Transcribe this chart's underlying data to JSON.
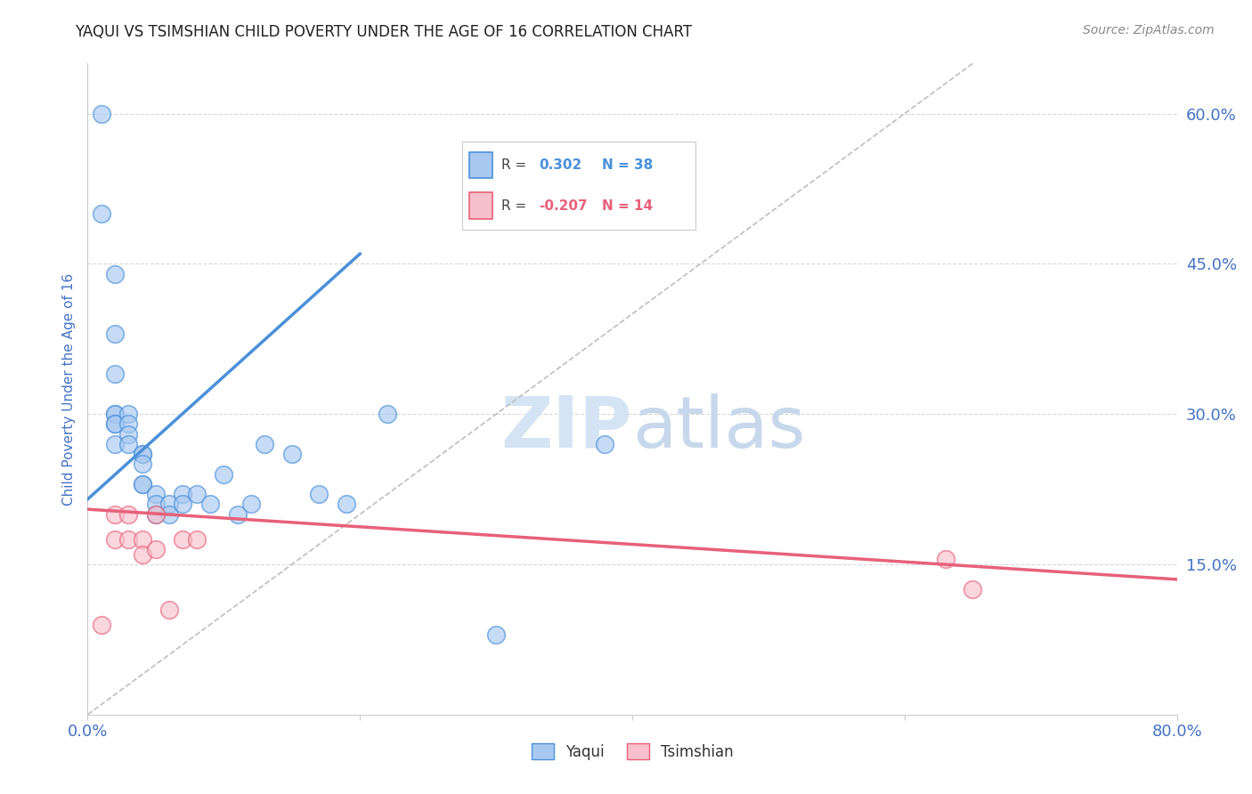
{
  "title": "YAQUI VS TSIMSHIAN CHILD POVERTY UNDER THE AGE OF 16 CORRELATION CHART",
  "source_text": "Source: ZipAtlas.com",
  "ylabel": "Child Poverty Under the Age of 16",
  "xlim": [
    0.0,
    0.8
  ],
  "ylim": [
    0.0,
    0.65
  ],
  "xticks": [
    0.0,
    0.2,
    0.4,
    0.6,
    0.8
  ],
  "yticks": [
    0.0,
    0.15,
    0.3,
    0.45,
    0.6
  ],
  "yaqui_R": 0.302,
  "yaqui_N": 38,
  "tsimshian_R": -0.207,
  "tsimshian_N": 14,
  "yaqui_color": "#A8C8F0",
  "tsimshian_color": "#F8C0CC",
  "yaqui_line_color": "#4A90D9",
  "tsimshian_line_color": "#E8607A",
  "diagonal_color": "#BEBEBE",
  "grid_color": "#D8D8D8",
  "title_color": "#222222",
  "axis_label_color": "#4472C4",
  "tick_color": "#4472C4",
  "watermark_color": "#D4E4F4",
  "yaqui_x": [
    0.01,
    0.01,
    0.02,
    0.02,
    0.02,
    0.02,
    0.02,
    0.02,
    0.02,
    0.02,
    0.03,
    0.03,
    0.03,
    0.03,
    0.04,
    0.04,
    0.04,
    0.04,
    0.04,
    0.05,
    0.05,
    0.05,
    0.06,
    0.06,
    0.07,
    0.07,
    0.08,
    0.09,
    0.1,
    0.11,
    0.12,
    0.13,
    0.15,
    0.17,
    0.19,
    0.22,
    0.3,
    0.38
  ],
  "yaqui_y": [
    0.6,
    0.5,
    0.44,
    0.38,
    0.34,
    0.3,
    0.3,
    0.29,
    0.29,
    0.27,
    0.3,
    0.29,
    0.28,
    0.27,
    0.26,
    0.26,
    0.25,
    0.23,
    0.23,
    0.22,
    0.21,
    0.2,
    0.21,
    0.2,
    0.22,
    0.21,
    0.22,
    0.21,
    0.24,
    0.2,
    0.21,
    0.27,
    0.26,
    0.22,
    0.21,
    0.3,
    0.08,
    0.27
  ],
  "tsimshian_x": [
    0.01,
    0.02,
    0.02,
    0.03,
    0.03,
    0.04,
    0.04,
    0.05,
    0.05,
    0.06,
    0.07,
    0.08,
    0.63,
    0.65
  ],
  "tsimshian_y": [
    0.09,
    0.2,
    0.175,
    0.175,
    0.2,
    0.175,
    0.16,
    0.2,
    0.165,
    0.105,
    0.175,
    0.175,
    0.155,
    0.125
  ],
  "yaqui_line_x": [
    0.0,
    0.2
  ],
  "tsimshian_line_x": [
    0.0,
    0.8
  ],
  "yaqui_line_y_start": 0.215,
  "yaqui_line_y_end": 0.46,
  "tsimshian_line_y_start": 0.205,
  "tsimshian_line_y_end": 0.135
}
